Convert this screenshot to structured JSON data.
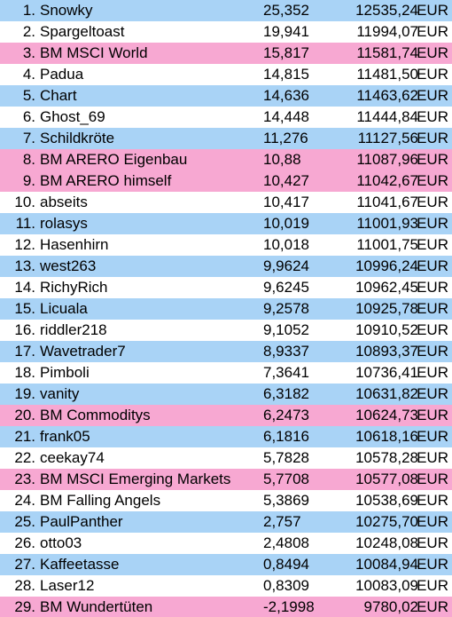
{
  "colors": {
    "blue": "#a9d3f6",
    "white": "#ffffff",
    "pink": "#f7a8d2"
  },
  "rows": [
    {
      "rank": "1.",
      "name": "Snowky",
      "pct": "25,352",
      "amount": "12535,24",
      "currency": "EUR",
      "style": "blue"
    },
    {
      "rank": "2.",
      "name": "Spargeltoast",
      "pct": "19,941",
      "amount": "11994,07",
      "currency": "EUR",
      "style": "white"
    },
    {
      "rank": "3.",
      "name": "BM MSCI World",
      "pct": "15,817",
      "amount": "11581,74",
      "currency": "EUR",
      "style": "pink"
    },
    {
      "rank": "4.",
      "name": "Padua",
      "pct": "14,815",
      "amount": "11481,50",
      "currency": "EUR",
      "style": "white"
    },
    {
      "rank": "5.",
      "name": "Chart",
      "pct": "14,636",
      "amount": "11463,62",
      "currency": "EUR",
      "style": "blue"
    },
    {
      "rank": "6.",
      "name": "Ghost_69",
      "pct": "14,448",
      "amount": "11444,84",
      "currency": "EUR",
      "style": "white"
    },
    {
      "rank": "7.",
      "name": "Schildkröte",
      "pct": "11,276",
      "amount": "11127,56",
      "currency": "EUR",
      "style": "blue"
    },
    {
      "rank": "8.",
      "name": "BM ARERO Eigenbau",
      "pct": "10,88",
      "amount": "11087,96",
      "currency": "EUR",
      "style": "pink"
    },
    {
      "rank": "9.",
      "name": "BM ARERO himself",
      "pct": "10,427",
      "amount": "11042,67",
      "currency": "EUR",
      "style": "pink"
    },
    {
      "rank": "10.",
      "name": "abseits",
      "pct": "10,417",
      "amount": "11041,67",
      "currency": "EUR",
      "style": "white"
    },
    {
      "rank": "11.",
      "name": "rolasys",
      "pct": "10,019",
      "amount": "11001,93",
      "currency": "EUR",
      "style": "blue"
    },
    {
      "rank": "12.",
      "name": "Hasenhirn",
      "pct": "10,018",
      "amount": "11001,75",
      "currency": "EUR",
      "style": "white"
    },
    {
      "rank": "13.",
      "name": "west263",
      "pct": "9,9624",
      "amount": "10996,24",
      "currency": "EUR",
      "style": "blue"
    },
    {
      "rank": "14.",
      "name": "RichyRich",
      "pct": "9,6245",
      "amount": "10962,45",
      "currency": "EUR",
      "style": "white"
    },
    {
      "rank": "15.",
      "name": "Licuala",
      "pct": "9,2578",
      "amount": "10925,78",
      "currency": "EUR",
      "style": "blue"
    },
    {
      "rank": "16.",
      "name": "riddler218",
      "pct": "9,1052",
      "amount": "10910,52",
      "currency": "EUR",
      "style": "white"
    },
    {
      "rank": "17.",
      "name": "Wavetrader7",
      "pct": "8,9337",
      "amount": "10893,37",
      "currency": "EUR",
      "style": "blue"
    },
    {
      "rank": "18.",
      "name": "Pimboli",
      "pct": "7,3641",
      "amount": "10736,41",
      "currency": "EUR",
      "style": "white"
    },
    {
      "rank": "19.",
      "name": "vanity",
      "pct": "6,3182",
      "amount": "10631,82",
      "currency": "EUR",
      "style": "blue"
    },
    {
      "rank": "20.",
      "name": "BM Commoditys",
      "pct": "6,2473",
      "amount": "10624,73",
      "currency": "EUR",
      "style": "pink"
    },
    {
      "rank": "21.",
      "name": "frank05",
      "pct": "6,1816",
      "amount": "10618,16",
      "currency": "EUR",
      "style": "blue"
    },
    {
      "rank": "22.",
      "name": "ceekay74",
      "pct": "5,7828",
      "amount": "10578,28",
      "currency": "EUR",
      "style": "white"
    },
    {
      "rank": "23.",
      "name": "BM MSCI Emerging Markets",
      "pct": "5,7708",
      "amount": "10577,08",
      "currency": "EUR",
      "style": "pink"
    },
    {
      "rank": "24.",
      "name": "BM Falling Angels",
      "pct": "5,3869",
      "amount": "10538,69",
      "currency": "EUR",
      "style": "white"
    },
    {
      "rank": "25.",
      "name": "PaulPanther",
      "pct": "2,757",
      "amount": "10275,70",
      "currency": "EUR",
      "style": "blue"
    },
    {
      "rank": "26.",
      "name": "otto03",
      "pct": "2,4808",
      "amount": "10248,08",
      "currency": "EUR",
      "style": "white"
    },
    {
      "rank": "27.",
      "name": "Kaffeetasse",
      "pct": "0,8494",
      "amount": "10084,94",
      "currency": "EUR",
      "style": "blue"
    },
    {
      "rank": "28.",
      "name": "Laser12",
      "pct": "0,8309",
      "amount": "10083,09",
      "currency": "EUR",
      "style": "white"
    },
    {
      "rank": "29.",
      "name": "BM Wundertüten",
      "pct": "-2,1998",
      "amount": "9780,02",
      "currency": "EUR",
      "style": "pink"
    }
  ]
}
